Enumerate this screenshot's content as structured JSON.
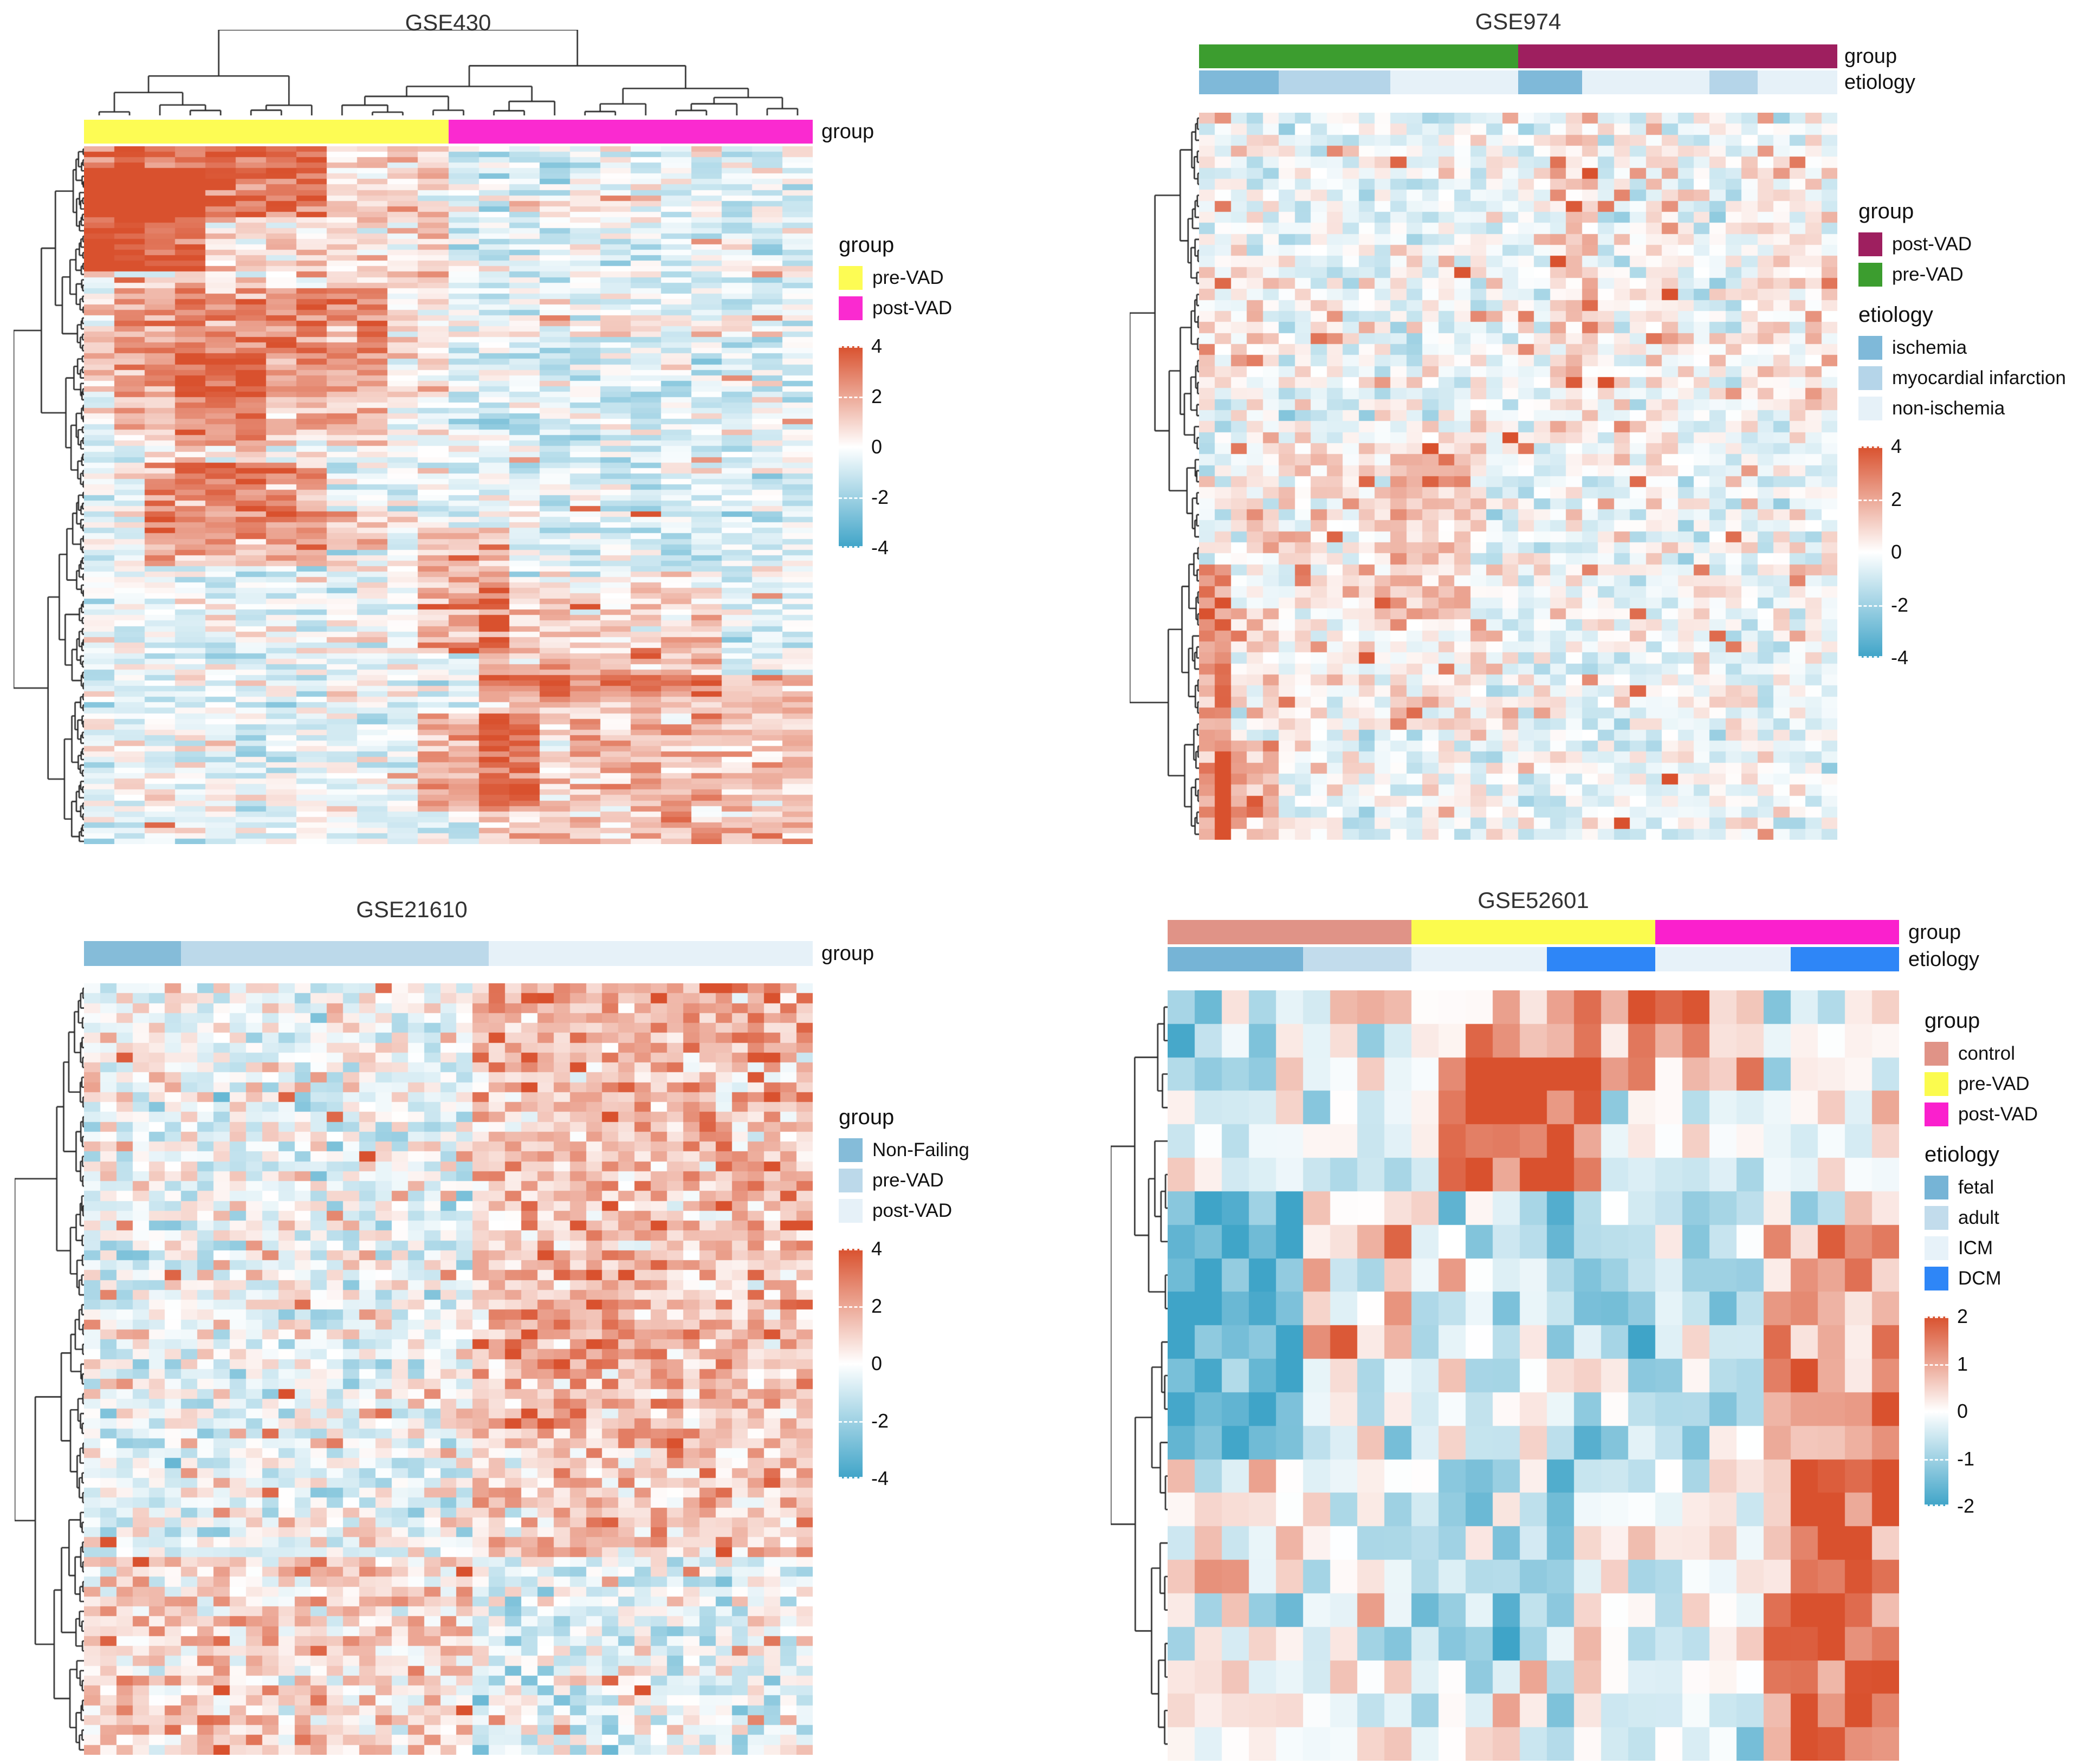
{
  "figure": {
    "background": "#ffffff"
  },
  "chart_data": [
    {
      "type": "heatmap",
      "title": "GSE430",
      "n_rows": 128,
      "n_cols": 24,
      "row_dendrogram": true,
      "column_dendrogram": true,
      "colormap": {
        "low": "#3fa4c8",
        "mid": "#ffffff",
        "high": "#d9512e"
      },
      "value_range": [
        -4,
        4
      ],
      "scale_ticks": [
        "4",
        "2",
        "0",
        "-2",
        "-4"
      ],
      "column_annotations": [
        {
          "label": "group",
          "segments": [
            {
              "name": "pre-VAD",
              "color": "#fdfc54",
              "count": 12
            },
            {
              "name": "post-VAD",
              "color": "#fa2ad0",
              "count": 12
            }
          ]
        }
      ],
      "legend": {
        "sections": [
          {
            "title": "group",
            "items": [
              {
                "label": "pre-VAD",
                "color": "#fdfc54"
              },
              {
                "label": "post-VAD",
                "color": "#fa2ad0"
              }
            ]
          }
        ]
      },
      "generation": {
        "seed": 430,
        "base": -0.35,
        "noise_sd": 0.85,
        "speckle_prob": 0.012,
        "speckle_amp": 2.6,
        "blocks": [
          {
            "rows": [
              0.0,
              0.1
            ],
            "cols": [
              0.0,
              0.32
            ],
            "mean": 2.6
          },
          {
            "rows": [
              0.03,
              0.18
            ],
            "cols": [
              0.0,
              0.15
            ],
            "mean": 2.8
          },
          {
            "rows": [
              0.0,
              0.36
            ],
            "cols": [
              0.0,
              0.5
            ],
            "mean": 1.2
          },
          {
            "rows": [
              0.2,
              0.43
            ],
            "cols": [
              0.06,
              0.4
            ],
            "mean": 1.7
          },
          {
            "rows": [
              0.3,
              0.5
            ],
            "cols": [
              0.12,
              0.27
            ],
            "mean": 1.4
          },
          {
            "rows": [
              0.45,
              0.6
            ],
            "cols": [
              0.08,
              0.33
            ],
            "mean": 2.1
          },
          {
            "rows": [
              0.5,
              0.56
            ],
            "cols": [
              0.1,
              0.3
            ],
            "mean": 1.0
          },
          {
            "rows": [
              0.52,
              0.58
            ],
            "cols": [
              0.33,
              0.42
            ],
            "mean": 1.8
          },
          {
            "rows": [
              0.07,
              0.09
            ],
            "cols": [
              0.58,
              0.78
            ],
            "mean": 1.5
          },
          {
            "rows": [
              0.17,
              0.19
            ],
            "cols": [
              0.86,
              1.0
            ],
            "mean": 1.8
          },
          {
            "rows": [
              0.24,
              0.27
            ],
            "cols": [
              0.55,
              0.95
            ],
            "mean": 1.0
          },
          {
            "rows": [
              0.55,
              0.73
            ],
            "cols": [
              0.46,
              0.58
            ],
            "mean": 2.0
          },
          {
            "rows": [
              0.63,
              0.79
            ],
            "cols": [
              0.55,
              0.86
            ],
            "mean": 1.5
          },
          {
            "rows": [
              0.76,
              1.0
            ],
            "cols": [
              0.55,
              1.0
            ],
            "mean": 1.7
          },
          {
            "rows": [
              0.81,
              0.95
            ],
            "cols": [
              0.46,
              0.63
            ],
            "mean": 2.0
          },
          {
            "rows": [
              0.0,
              0.6
            ],
            "cols": [
              0.52,
              1.0
            ],
            "mean": -0.25
          }
        ]
      }
    },
    {
      "type": "heatmap",
      "title": "GSE974",
      "n_rows": 66,
      "n_cols": 40,
      "row_dendrogram": true,
      "column_dendrogram": false,
      "colormap": {
        "low": "#3fa4c8",
        "mid": "#ffffff",
        "high": "#d9512e"
      },
      "value_range": [
        -4,
        4
      ],
      "scale_ticks": [
        "4",
        "2",
        "0",
        "-2",
        "-4"
      ],
      "column_annotations": [
        {
          "label": "group",
          "segments": [
            {
              "name": "pre-VAD",
              "color": "#3c9d2f",
              "count": 20
            },
            {
              "name": "post-VAD",
              "color": "#9e1f5f",
              "count": 20
            }
          ]
        },
        {
          "label": "etiology",
          "segments": [
            {
              "name": "ischemia",
              "color": "#7fb9d9",
              "count": 5
            },
            {
              "name": "myocardial infarction",
              "color": "#b5d5e9",
              "count": 7
            },
            {
              "name": "non-ischemia",
              "color": "#e6f1f8",
              "count": 8
            },
            {
              "name": "ischemia",
              "color": "#7fb9d9",
              "count": 4
            },
            {
              "name": "non-ischemia",
              "color": "#e6f1f8",
              "count": 8
            },
            {
              "name": "myocardial infarction",
              "color": "#b5d5e9",
              "count": 3
            },
            {
              "name": "non-ischemia",
              "color": "#e6f1f8",
              "count": 5
            }
          ]
        }
      ],
      "legend": {
        "sections": [
          {
            "title": "group",
            "items": [
              {
                "label": "post-VAD",
                "color": "#9e1f5f"
              },
              {
                "label": "pre-VAD",
                "color": "#3c9d2f"
              }
            ]
          },
          {
            "title": "etiology",
            "items": [
              {
                "label": "ischemia",
                "color": "#7fb9d9"
              },
              {
                "label": "myocardial infarction",
                "color": "#b5d5e9"
              },
              {
                "label": "non-ischemia",
                "color": "#e6f1f8"
              }
            ]
          }
        ]
      },
      "generation": {
        "seed": 974,
        "base": -0.3,
        "noise_sd": 0.8,
        "speckle_prob": 0.05,
        "speckle_amp": 2.4,
        "blocks": [
          {
            "rows": [
              0.0,
              0.45
            ],
            "cols": [
              0.55,
              0.63
            ],
            "mean": 1.1
          },
          {
            "rows": [
              0.0,
              0.5
            ],
            "cols": [
              0.7,
              0.76
            ],
            "mean": 0.9
          },
          {
            "rows": [
              0.05,
              0.42
            ],
            "cols": [
              0.86,
              1.0
            ],
            "mean": 0.7
          },
          {
            "rows": [
              0.2,
              0.4
            ],
            "cols": [
              0.0,
              0.1
            ],
            "mean": 0.8
          },
          {
            "rows": [
              0.42,
              0.85
            ],
            "cols": [
              0.05,
              0.45
            ],
            "mean": 0.7
          },
          {
            "rows": [
              0.47,
              0.7
            ],
            "cols": [
              0.3,
              0.42
            ],
            "mean": 0.9
          },
          {
            "rows": [
              0.62,
              1.0
            ],
            "cols": [
              0.0,
              0.06
            ],
            "mean": 2.7
          },
          {
            "rows": [
              0.86,
              1.0
            ],
            "cols": [
              0.03,
              0.13
            ],
            "mean": 2.0
          }
        ]
      }
    },
    {
      "type": "heatmap",
      "title": "GSE21610",
      "n_rows": 78,
      "n_cols": 45,
      "row_dendrogram": true,
      "column_dendrogram": false,
      "colormap": {
        "low": "#3fa4c8",
        "mid": "#ffffff",
        "high": "#d9512e"
      },
      "value_range": [
        -4,
        4
      ],
      "scale_ticks": [
        "4",
        "2",
        "0",
        "-2",
        "-4"
      ],
      "column_annotations": [
        {
          "label": "group",
          "segments": [
            {
              "name": "Non-Failing",
              "color": "#85bcd9",
              "count": 6
            },
            {
              "name": "pre-VAD",
              "color": "#bcd9ea",
              "count": 19
            },
            {
              "name": "post-VAD",
              "color": "#e6f1f8",
              "count": 20
            }
          ]
        }
      ],
      "legend": {
        "sections": [
          {
            "title": "group",
            "items": [
              {
                "label": "Non-Failing",
                "color": "#85bcd9"
              },
              {
                "label": "pre-VAD",
                "color": "#bcd9ea"
              },
              {
                "label": "post-VAD",
                "color": "#e6f1f8"
              }
            ]
          }
        ]
      },
      "generation": {
        "seed": 21610,
        "base": -0.4,
        "noise_sd": 1.0,
        "speckle_prob": 0.06,
        "speckle_amp": 2.2,
        "blocks": [
          {
            "rows": [
              0.0,
              0.74
            ],
            "cols": [
              0.53,
              1.0
            ],
            "mean": 1.6
          },
          {
            "rows": [
              0.0,
              0.1
            ],
            "cols": [
              0.53,
              1.0
            ],
            "mean": 0.4
          },
          {
            "rows": [
              0.4,
              0.6
            ],
            "cols": [
              0.6,
              0.9
            ],
            "mean": 0.4
          },
          {
            "rows": [
              0.74,
              1.0
            ],
            "cols": [
              0.0,
              0.53
            ],
            "mean": 1.4
          },
          {
            "rows": [
              0.74,
              1.0
            ],
            "cols": [
              0.53,
              1.0
            ],
            "mean": -0.1
          }
        ]
      }
    },
    {
      "type": "heatmap",
      "title": "GSE52601",
      "n_rows": 23,
      "n_cols": 27,
      "row_dendrogram": true,
      "column_dendrogram": false,
      "colormap": {
        "low": "#3fa4c8",
        "mid": "#ffffff",
        "high": "#d9512e"
      },
      "value_range": [
        -2,
        2
      ],
      "scale_ticks": [
        "2",
        "1",
        "0",
        "-1",
        "-2"
      ],
      "column_annotations": [
        {
          "label": "group",
          "segments": [
            {
              "name": "control",
              "color": "#e09387",
              "count": 9
            },
            {
              "name": "pre-VAD",
              "color": "#fbfb4e",
              "count": 9
            },
            {
              "name": "post-VAD",
              "color": "#fa20cd",
              "count": 9
            }
          ]
        },
        {
          "label": "etiology",
          "segments": [
            {
              "name": "fetal",
              "color": "#76b4d6",
              "count": 5
            },
            {
              "name": "adult",
              "color": "#c2dcec",
              "count": 4
            },
            {
              "name": "ICM",
              "color": "#e7f2f9",
              "count": 5
            },
            {
              "name": "DCM",
              "color": "#2e86f7",
              "count": 4
            },
            {
              "name": "ICM",
              "color": "#e7f2f9",
              "count": 5
            },
            {
              "name": "DCM",
              "color": "#2e86f7",
              "count": 4
            }
          ]
        }
      ],
      "legend": {
        "sections": [
          {
            "title": "group",
            "items": [
              {
                "label": "control",
                "color": "#e09387"
              },
              {
                "label": "pre-VAD",
                "color": "#fbfb4e"
              },
              {
                "label": "post-VAD",
                "color": "#fa20cd"
              }
            ]
          },
          {
            "title": "etiology",
            "items": [
              {
                "label": "fetal",
                "color": "#76b4d6"
              },
              {
                "label": "adult",
                "color": "#c2dcec"
              },
              {
                "label": "ICM",
                "color": "#e7f2f9"
              },
              {
                "label": "DCM",
                "color": "#2e86f7"
              }
            ]
          }
        ]
      },
      "generation": {
        "seed": 52601,
        "base": -0.1,
        "noise_sd": 0.55,
        "speckle_prob": 0.0,
        "speckle_amp": 0,
        "blocks": [
          {
            "rows": [
              0.0,
              0.13
            ],
            "cols": [
              0.4,
              0.8
            ],
            "mean": 1.2
          },
          {
            "rows": [
              0.09,
              0.27
            ],
            "cols": [
              0.37,
              0.6
            ],
            "mean": 2.0
          },
          {
            "rows": [
              0.0,
              0.27
            ],
            "cols": [
              0.0,
              0.22
            ],
            "mean": -0.5
          },
          {
            "rows": [
              0.27,
              0.62
            ],
            "cols": [
              0.0,
              0.19
            ],
            "mean": -1.5
          },
          {
            "rows": [
              0.27,
              0.48
            ],
            "cols": [
              0.19,
              0.33
            ],
            "mean": 0.7
          },
          {
            "rows": [
              0.27,
              0.62
            ],
            "cols": [
              0.52,
              0.8
            ],
            "mean": -0.5
          },
          {
            "rows": [
              0.32,
              1.0
            ],
            "cols": [
              0.8,
              1.0
            ],
            "mean": 1.1
          },
          {
            "rows": [
              0.62,
              1.0
            ],
            "cols": [
              0.86,
              1.0
            ],
            "mean": 0.8
          },
          {
            "rows": [
              0.62,
              0.88
            ],
            "cols": [
              0.3,
              0.56
            ],
            "mean": -0.7
          },
          {
            "rows": [
              0.88,
              1.0
            ],
            "cols": [
              0.0,
              0.33
            ],
            "mean": 0.2
          }
        ]
      }
    }
  ]
}
